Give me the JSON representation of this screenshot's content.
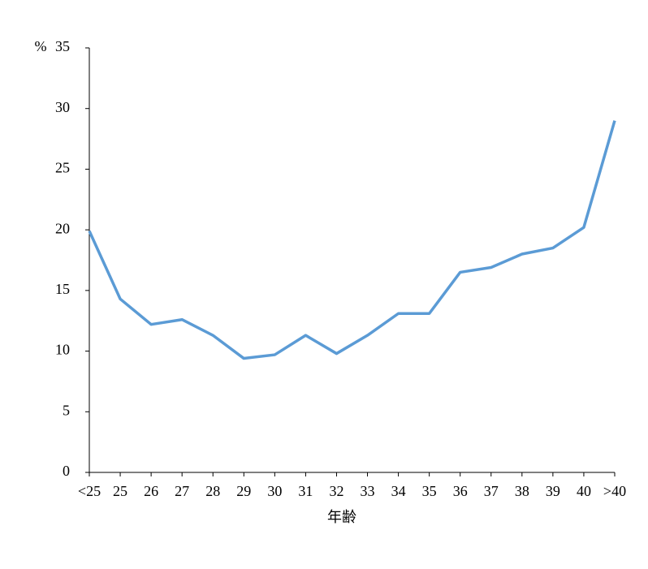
{
  "chart_data": {
    "type": "line",
    "y_unit": "%",
    "x_label": "年齢",
    "categories": [
      "<25",
      "25",
      "26",
      "27",
      "28",
      "29",
      "30",
      "31",
      "32",
      "33",
      "34",
      "35",
      "36",
      "37",
      "38",
      "39",
      "40",
      ">40"
    ],
    "series": [
      {
        "color": "#5b9bd5",
        "values": [
          19.9,
          14.3,
          12.2,
          12.6,
          11.3,
          9.4,
          9.7,
          11.3,
          9.8,
          11.3,
          13.1,
          13.1,
          16.5,
          16.9,
          18.0,
          18.5,
          20.2,
          29.0
        ]
      }
    ],
    "ylim": [
      0,
      35
    ],
    "yticks": [
      0,
      5,
      10,
      15,
      20,
      25,
      30,
      35
    ],
    "grid": false
  }
}
